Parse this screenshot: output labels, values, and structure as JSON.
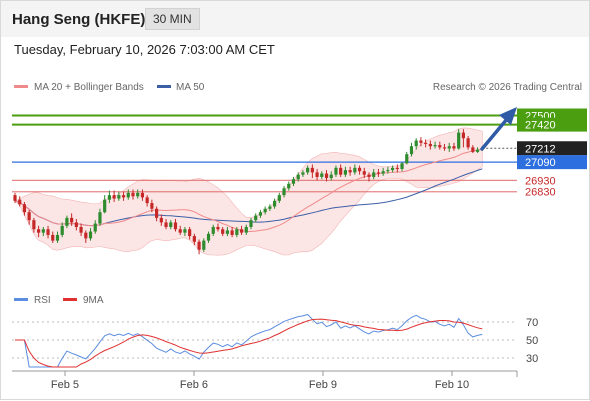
{
  "header": {
    "title": "Hang Seng (HKFE)",
    "timeframe": "30 MIN"
  },
  "datetime": "Tuesday, February 10, 2026 7:03:00 AM CET",
  "legend": {
    "ma20_bb": "MA 20 + Bollinger Bands",
    "ma50": "MA 50",
    "credit": "Research © 2026 Trading Central"
  },
  "rsi_legend": {
    "rsi": "RSI",
    "ma9": "9MA"
  },
  "colors": {
    "green": "#4a9e10",
    "blue": "#2e6fe0",
    "red": "#e06a6a",
    "up": "#2e8b2e",
    "down": "#c62828",
    "ma50": "#3c5fa8",
    "band": "#fbe0e0",
    "arrow": "#2f5aa6",
    "rsi": "#5b8de0",
    "rsi_ma": "#e03030"
  },
  "chart_data": [
    {
      "type": "candlestick",
      "name": "price",
      "ylim": [
        26010,
        27645
      ],
      "x_ticks": [
        "Feb 5",
        "Feb 6",
        "Feb 9",
        "Feb 10"
      ],
      "levels": [
        {
          "value": 27500,
          "label": "27500",
          "kind": "resistance"
        },
        {
          "value": 27420,
          "label": "27420",
          "kind": "resistance"
        },
        {
          "value": 27212,
          "label": "27212",
          "kind": "last"
        },
        {
          "value": 27090,
          "label": "27090",
          "kind": "pivot"
        },
        {
          "value": 26930,
          "label": "26930",
          "kind": "support"
        },
        {
          "value": 26830,
          "label": "26830",
          "kind": "support"
        }
      ],
      "candles": [
        [
          26800,
          26750,
          26820,
          26730
        ],
        [
          26760,
          26720,
          26790,
          26700
        ],
        [
          26720,
          26650,
          26740,
          26620
        ],
        [
          26650,
          26580,
          26670,
          26540
        ],
        [
          26580,
          26500,
          26600,
          26470
        ],
        [
          26500,
          26470,
          26530,
          26430
        ],
        [
          26470,
          26500,
          26520,
          26440
        ],
        [
          26500,
          26450,
          26530,
          26420
        ],
        [
          26450,
          26400,
          26480,
          26380
        ],
        [
          26400,
          26450,
          26480,
          26380
        ],
        [
          26450,
          26530,
          26560,
          26430
        ],
        [
          26530,
          26600,
          26620,
          26510
        ],
        [
          26600,
          26560,
          26640,
          26530
        ],
        [
          26560,
          26520,
          26590,
          26490
        ],
        [
          26520,
          26470,
          26550,
          26440
        ],
        [
          26470,
          26420,
          26490,
          26380
        ],
        [
          26420,
          26480,
          26510,
          26400
        ],
        [
          26480,
          26550,
          26580,
          26460
        ],
        [
          26550,
          26650,
          26680,
          26530
        ],
        [
          26650,
          26760,
          26800,
          26640
        ],
        [
          26760,
          26800,
          26840,
          26730
        ],
        [
          26800,
          26770,
          26840,
          26740
        ],
        [
          26770,
          26800,
          26830,
          26750
        ],
        [
          26800,
          26780,
          26830,
          26750
        ],
        [
          26780,
          26820,
          26850,
          26760
        ],
        [
          26820,
          26790,
          26850,
          26760
        ],
        [
          26790,
          26820,
          26850,
          26770
        ],
        [
          26820,
          26780,
          26850,
          26750
        ],
        [
          26780,
          26730,
          26800,
          26700
        ],
        [
          26730,
          26680,
          26760,
          26650
        ],
        [
          26680,
          26600,
          26700,
          26570
        ],
        [
          26600,
          26560,
          26630,
          26530
        ],
        [
          26560,
          26520,
          26590,
          26500
        ],
        [
          26520,
          26560,
          26580,
          26500
        ],
        [
          26560,
          26500,
          26590,
          26480
        ],
        [
          26500,
          26470,
          26530,
          26450
        ],
        [
          26470,
          26500,
          26520,
          26440
        ],
        [
          26500,
          26440,
          26520,
          26410
        ],
        [
          26440,
          26390,
          26460,
          26360
        ],
        [
          26390,
          26320,
          26410,
          26280
        ],
        [
          26320,
          26400,
          26420,
          26300
        ],
        [
          26400,
          26460,
          26480,
          26380
        ],
        [
          26460,
          26520,
          26540,
          26440
        ],
        [
          26520,
          26500,
          26550,
          26480
        ],
        [
          26500,
          26460,
          26520,
          26440
        ],
        [
          26460,
          26490,
          26520,
          26440
        ],
        [
          26490,
          26450,
          26520,
          26430
        ],
        [
          26450,
          26500,
          26520,
          26430
        ],
        [
          26500,
          26470,
          26530,
          26450
        ],
        [
          26470,
          26520,
          26540,
          26450
        ],
        [
          26520,
          26580,
          26600,
          26500
        ],
        [
          26580,
          26620,
          26640,
          26560
        ],
        [
          26620,
          26650,
          26670,
          26600
        ],
        [
          26650,
          26680,
          26700,
          26630
        ],
        [
          26680,
          26700,
          26720,
          26660
        ],
        [
          26700,
          26750,
          26770,
          26680
        ],
        [
          26750,
          26800,
          26820,
          26730
        ],
        [
          26800,
          26860,
          26880,
          26780
        ],
        [
          26860,
          26900,
          26920,
          26840
        ],
        [
          26900,
          26940,
          26960,
          26880
        ],
        [
          26940,
          26980,
          27000,
          26920
        ],
        [
          26980,
          27000,
          27020,
          26960
        ],
        [
          27000,
          27040,
          27060,
          26980
        ],
        [
          27040,
          27000,
          27070,
          26950
        ],
        [
          27000,
          26960,
          27030,
          26930
        ],
        [
          26960,
          26990,
          27010,
          26940
        ],
        [
          26990,
          26950,
          27020,
          26920
        ],
        [
          26950,
          26980,
          27010,
          26930
        ],
        [
          26980,
          27040,
          27060,
          26960
        ],
        [
          27040,
          26980,
          27070,
          26960
        ],
        [
          26980,
          27020,
          27050,
          26960
        ],
        [
          27020,
          27000,
          27050,
          26970
        ],
        [
          27000,
          27040,
          27070,
          26980
        ],
        [
          27040,
          27010,
          27060,
          26980
        ],
        [
          27010,
          26980,
          27040,
          26950
        ],
        [
          26980,
          26960,
          27000,
          26920
        ],
        [
          26960,
          27000,
          27030,
          26940
        ],
        [
          27000,
          26990,
          27030,
          26960
        ],
        [
          26990,
          27010,
          27040,
          26970
        ],
        [
          27010,
          27020,
          27050,
          26990
        ],
        [
          27020,
          27040,
          27060,
          27000
        ],
        [
          27040,
          27030,
          27070,
          27000
        ],
        [
          27030,
          27080,
          27090,
          27010
        ],
        [
          27080,
          27160,
          27180,
          27070
        ],
        [
          27160,
          27230,
          27260,
          27140
        ],
        [
          27230,
          27280,
          27300,
          27200
        ],
        [
          27280,
          27260,
          27310,
          27230
        ],
        [
          27260,
          27250,
          27290,
          27220
        ],
        [
          27250,
          27230,
          27280,
          27200
        ],
        [
          27230,
          27240,
          27270,
          27210
        ],
        [
          27240,
          27220,
          27270,
          27200
        ],
        [
          27220,
          27210,
          27250,
          27190
        ],
        [
          27210,
          27230,
          27260,
          27180
        ],
        [
          27230,
          27210,
          27260,
          27190
        ],
        [
          27210,
          27350,
          27380,
          27200
        ],
        [
          27350,
          27300,
          27380,
          27220
        ],
        [
          27300,
          27220,
          27320,
          27200
        ],
        [
          27220,
          27180,
          27240,
          27170
        ],
        [
          27180,
          27200,
          27220,
          27170
        ],
        [
          27200,
          27212,
          27230,
          27190
        ]
      ]
    },
    {
      "type": "line",
      "name": "rsi",
      "ylim": [
        20,
        80
      ],
      "y_ticks": [
        70,
        50,
        30
      ]
    }
  ]
}
